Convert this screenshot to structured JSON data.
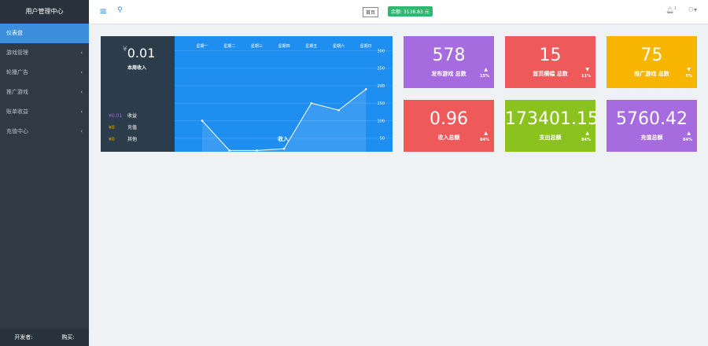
{
  "sidebar": {
    "title": "用户管理中心",
    "menu": [
      "仪表盘",
      "游戏管理",
      "轮播广告",
      "推广游戏",
      "账单收益",
      "充值中心"
    ],
    "footer": [
      "开发者:",
      "购买:"
    ]
  },
  "topbar": {
    "home": "首页",
    "balance": "余额: 3138.83 元",
    "notifications": "1"
  },
  "income": {
    "currency": "¥",
    "amount": "0.01",
    "label": "本周收入",
    "rows": [
      [
        "¥0.01",
        "收益"
      ],
      [
        "¥0",
        "充值"
      ],
      [
        "¥0",
        "其他"
      ]
    ]
  },
  "chart_data": {
    "type": "line",
    "categories": [
      "星期一",
      "星期二",
      "星期三",
      "星期四",
      "星期五",
      "星期六",
      "星期日"
    ],
    "series": [
      {
        "name": "收入",
        "color": "#ffffff",
        "values": [
          100,
          15,
          15,
          20,
          150,
          130,
          190
        ]
      }
    ],
    "ylim": [
      0,
      310
    ],
    "yticks": [
      50,
      100,
      150,
      200,
      250,
      300
    ]
  },
  "stats": [
    {
      "value": "578",
      "label": "发布游戏 总数",
      "change": "15%",
      "trend": "up",
      "color": "#a66cdf"
    },
    {
      "value": "15",
      "label": "首页横幅 总数",
      "change": "11%",
      "trend": "down",
      "color": "#ee5a5a"
    },
    {
      "value": "75",
      "label": "推广游戏 总数",
      "change": "5%",
      "trend": "down",
      "color": "#f7b500"
    },
    {
      "value": "0.96",
      "label": "收入总额",
      "change": "84%",
      "trend": "up",
      "color": "#ee5a5a"
    },
    {
      "value": "173401.15",
      "label": "支出总额",
      "change": "84%",
      "trend": "up",
      "color": "#8cc21f"
    },
    {
      "value": "5760.42",
      "label": "充值总额",
      "change": "84%",
      "trend": "up",
      "color": "#a66cdf"
    }
  ]
}
